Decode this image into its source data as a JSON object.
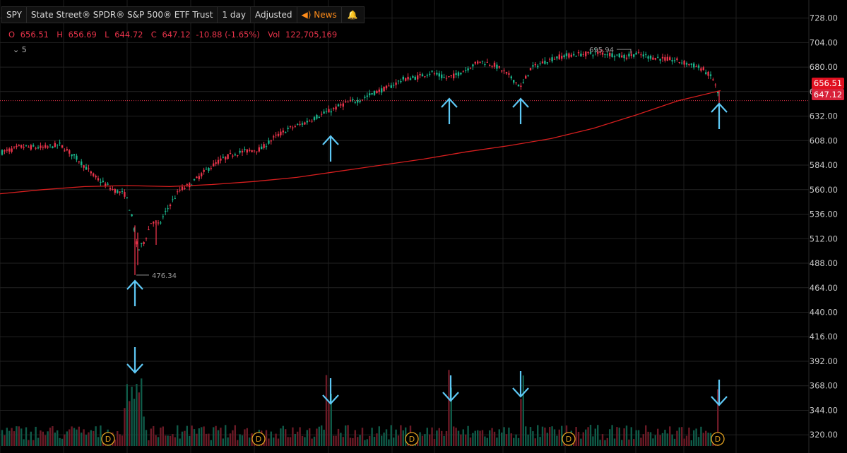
{
  "header": {
    "symbol": "SPY",
    "name": "State Street® SPDR® S&P 500® ETF Trust",
    "interval": "1 day",
    "adjust": "Adjusted",
    "news": "News"
  },
  "ohlc": {
    "o_label": "O",
    "o": "656.51",
    "h_label": "H",
    "h": "656.69",
    "l_label": "L",
    "l": "644.72",
    "c_label": "C",
    "c": "647.12",
    "change": "-10.88 (-1.65%)",
    "vol_label": "Vol",
    "vol": "122,705,169"
  },
  "ma_label": "5",
  "tags": {
    "current": "656.51",
    "close": "647.12"
  },
  "colors": {
    "up": "#19b38a",
    "down": "#e8334a",
    "ma": "#d51e1e",
    "arrow": "#5ec8f5",
    "dividend": "#e0a020",
    "background": "#000000",
    "grid": "#222222"
  },
  "chart_data": {
    "type": "candlestick",
    "y_ticks": [
      "728.00",
      "704.00",
      "680.00",
      "656.00",
      "632.00",
      "608.00",
      "584.00",
      "560.00",
      "536.00",
      "512.00",
      "488.00",
      "464.00",
      "440.00",
      "416.00",
      "392.00",
      "368.00",
      "344.00",
      "320.00"
    ],
    "ylim": [
      316,
      736
    ],
    "high_annotation": "695.94",
    "low_annotation": "476.34",
    "moving_average": {
      "x": [
        0,
        60,
        120,
        180,
        240,
        300,
        360,
        420,
        480,
        540,
        600,
        660,
        720,
        780,
        840,
        900,
        960,
        1020
      ],
      "values": [
        556,
        560,
        563,
        564,
        563,
        565,
        568,
        572,
        578,
        584,
        590,
        597,
        603,
        610,
        620,
        633,
        647,
        657
      ]
    },
    "candle_path": {
      "x": [
        0,
        30,
        60,
        85,
        110,
        135,
        160,
        178,
        188,
        195,
        205,
        215,
        225,
        240,
        255,
        270,
        290,
        310,
        330,
        350,
        370,
        390,
        410,
        430,
        450,
        470,
        490,
        510,
        530,
        550,
        570,
        590,
        610,
        630,
        645,
        660,
        680,
        700,
        720,
        738,
        750,
        770,
        790,
        810,
        830,
        850,
        870,
        885,
        900,
        920,
        940,
        960,
        980,
        995,
        1010,
        1018
      ],
      "values": [
        596,
        602,
        601,
        604,
        590,
        572,
        560,
        555,
        530,
        500,
        510,
        530,
        525,
        545,
        560,
        565,
        578,
        588,
        595,
        598,
        600,
        612,
        620,
        625,
        632,
        638,
        645,
        648,
        655,
        660,
        668,
        670,
        675,
        669,
        672,
        678,
        686,
        682,
        672,
        660,
        678,
        685,
        690,
        692,
        693,
        694,
        692,
        690,
        693,
        690,
        688,
        686,
        682,
        678,
        668,
        650
      ]
    },
    "volume_spikes": [
      188,
      195,
      465,
      637,
      738,
      1018
    ],
    "dividend_markers": [
      153,
      366,
      583,
      805,
      1016
    ],
    "annotation_arrows": {
      "up_x": [
        191,
        468,
        636,
        737,
        1018
      ],
      "down_x": [
        191,
        468,
        638,
        737,
        1018
      ]
    }
  }
}
